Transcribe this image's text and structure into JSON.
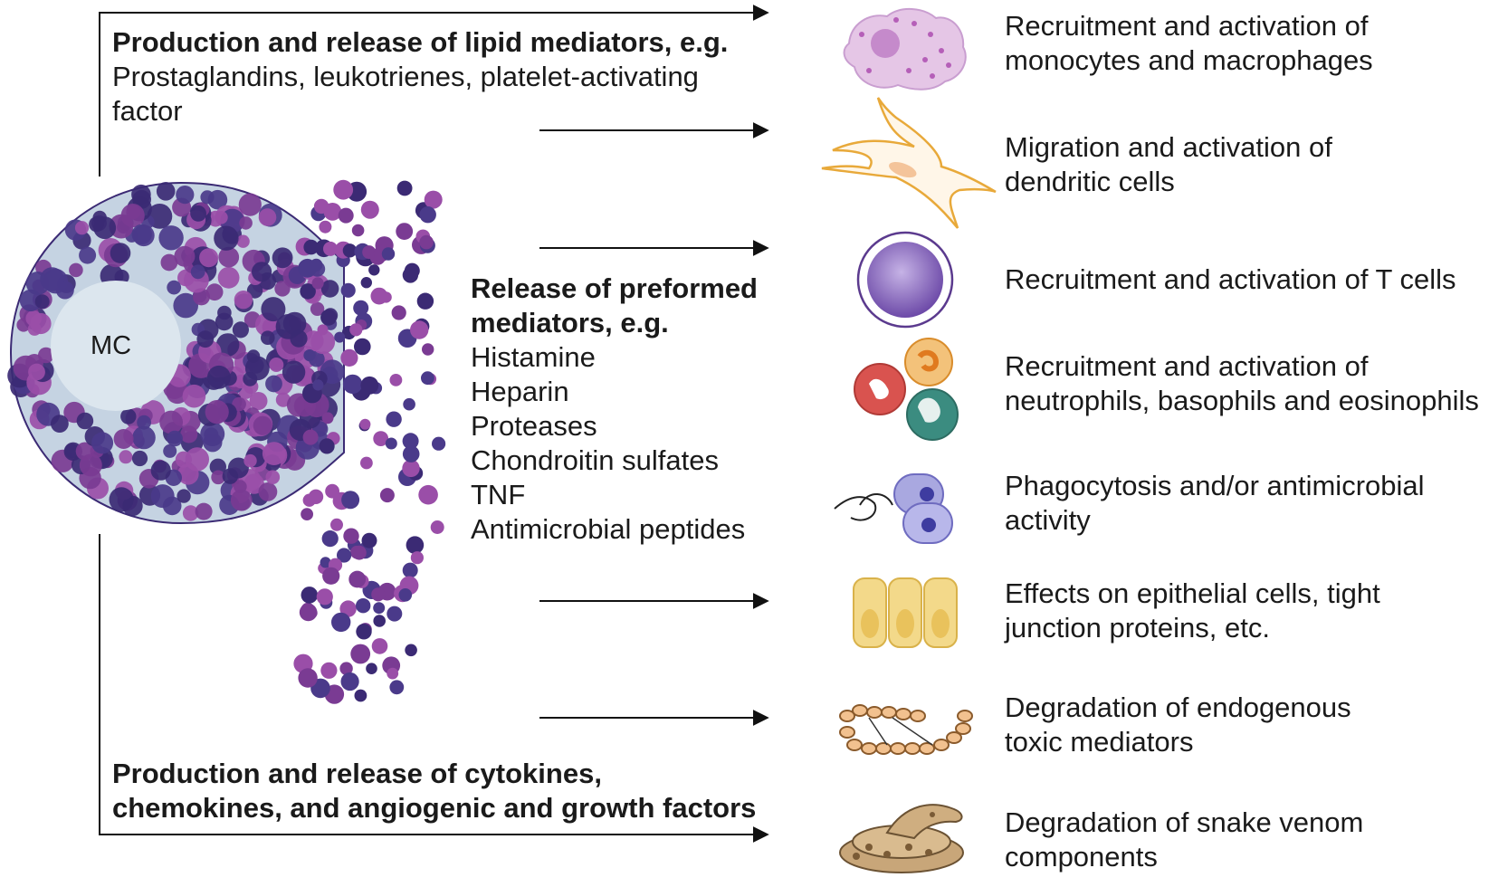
{
  "mast_cell_label": "MC",
  "lipid": {
    "title": "Production and release of lipid mediators, e.g.",
    "lines": [
      "Prostaglandins, leukotrienes, platelet-activating",
      "factor"
    ]
  },
  "preformed": {
    "title_lines": [
      "Release of preformed",
      "mediators, e.g."
    ],
    "items": [
      "Histamine",
      "Heparin",
      "Proteases",
      "Chondroitin sulfates",
      "TNF",
      "Antimicrobial peptides"
    ]
  },
  "cytokines": {
    "title_lines": [
      "Production and release of cytokines,",
      "chemokines, and angiogenic and growth factors"
    ]
  },
  "effects": [
    {
      "icon": "monocyte-macrophage-icon",
      "lines": [
        "Recruitment and activation of",
        "monocytes and macrophages"
      ]
    },
    {
      "icon": "dendritic-cell-icon",
      "lines": [
        "Migration and activation of",
        "dendritic cells"
      ]
    },
    {
      "icon": "t-cell-icon",
      "lines": [
        "Recruitment and activation of T cells"
      ]
    },
    {
      "icon": "granulocytes-icon",
      "lines": [
        "Recruitment and activation of",
        "neutrophils, basophils and eosinophils"
      ]
    },
    {
      "icon": "phagocytosis-icon",
      "lines": [
        "Phagocytosis and/or antimicrobial",
        "activity"
      ]
    },
    {
      "icon": "epithelial-cells-icon",
      "lines": [
        "Effects on epithelial cells, tight",
        "junction proteins, etc."
      ]
    },
    {
      "icon": "endogenous-toxin-chain-icon",
      "lines": [
        "Degradation of endogenous",
        "toxic mediators"
      ]
    },
    {
      "icon": "rattlesnake-icon",
      "lines": [
        "Degradation of snake venom",
        "components"
      ]
    }
  ],
  "colors": {
    "granule_dark": "#3b2a74",
    "granule_purple": "#7a3b93",
    "granule_light": "#9a4ea8",
    "cell_fill": "#c5d3e2",
    "nucleus_fill": "#dce6ee",
    "epithelial": "#f3d98a",
    "dendritic": "#e8a93a",
    "macrophage": "#e5c6e6",
    "t_cell": "#8a6bbd"
  }
}
